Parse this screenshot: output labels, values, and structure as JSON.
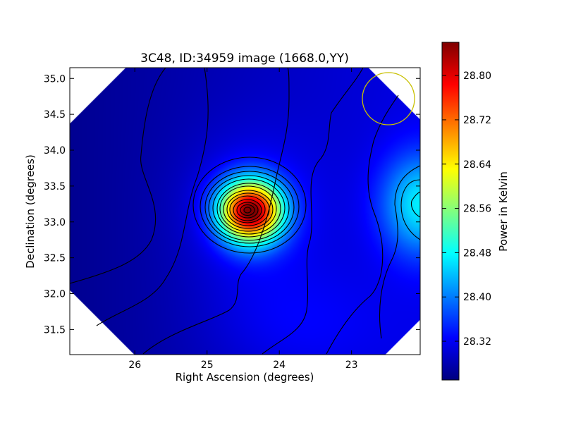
{
  "chart_data": {
    "type": "heatmap",
    "title": "3C48, ID:34959 image (1668.0,YY)",
    "xlabel": "Right Ascension (degrees)",
    "ylabel": "Declination (degrees)",
    "xlim": [
      26.9,
      22.05
    ],
    "ylim": [
      31.15,
      35.15
    ],
    "x_ticks": [
      26,
      25,
      24,
      23
    ],
    "x_tick_labels": [
      "26",
      "25",
      "24",
      "23"
    ],
    "y_ticks": [
      31.5,
      32.0,
      32.5,
      33.0,
      33.5,
      34.0,
      34.5,
      35.0
    ],
    "y_tick_labels": [
      "31.5",
      "32.0",
      "32.5",
      "33.0",
      "33.5",
      "34.0",
      "34.5",
      "35.0"
    ],
    "colormap": "jet",
    "colorbar": {
      "label": "Power in Kelvin",
      "range": [
        28.25,
        28.86
      ],
      "ticks": [
        28.32,
        28.4,
        28.48,
        28.56,
        28.64,
        28.72,
        28.8
      ],
      "tick_labels": [
        "28.32",
        "28.40",
        "28.48",
        "28.56",
        "28.64",
        "28.72",
        "28.80"
      ]
    },
    "features": {
      "peak": {
        "ra": 24.4,
        "dec": 33.15,
        "value": 28.85
      },
      "secondary_source": {
        "ra": 22.05,
        "dec": 33.25,
        "value": 28.52
      },
      "beam_circle": {
        "ra": 22.45,
        "dec": 34.72,
        "radius_deg": 0.36,
        "color": "#c8c000"
      }
    },
    "contour_color": "#000000"
  }
}
